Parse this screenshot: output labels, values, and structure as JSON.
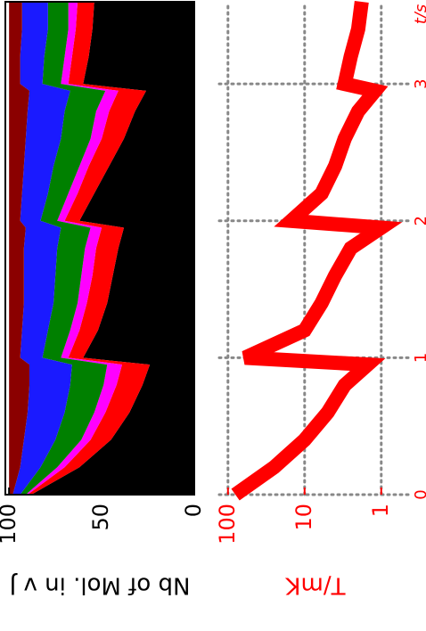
{
  "chart_data": [
    {
      "type": "area",
      "stacked": true,
      "ylabel": "Nb of Mol. in v J",
      "x": [
        0,
        0.2,
        0.4,
        0.6,
        0.8,
        0.95,
        1.0,
        1.2,
        1.4,
        1.6,
        1.8,
        1.95,
        2.0,
        2.2,
        2.4,
        2.6,
        2.8,
        2.95,
        3.0,
        3.2,
        3.4,
        3.6
      ],
      "xlim": [
        0,
        3.6
      ],
      "ylim": [
        0,
        102
      ],
      "yticks": [
        0,
        50,
        100
      ],
      "axis_color": "#000000",
      "grid": false,
      "series": [
        {
          "color": "#000000",
          "values": [
            88,
            62,
            45,
            35,
            28,
            24,
            60,
            52,
            47,
            44,
            41,
            38,
            62,
            54,
            46,
            38,
            32,
            26,
            60,
            57,
            55,
            54
          ]
        },
        {
          "color": "#ff0000",
          "values": [
            2,
            8,
            11,
            13,
            14,
            15,
            8,
            10,
            11,
            11,
            12,
            12,
            8,
            9,
            11,
            12,
            14,
            15,
            8,
            9,
            9,
            9
          ]
        },
        {
          "color": "#ff00ff",
          "values": [
            1,
            4,
            5,
            6,
            7,
            8,
            4,
            5,
            5,
            6,
            6,
            6,
            4,
            5,
            5,
            6,
            7,
            7,
            4,
            4,
            4,
            5
          ]
        },
        {
          "color": "#008000",
          "values": [
            3,
            9,
            14,
            16,
            18,
            19,
            10,
            12,
            13,
            14,
            15,
            16,
            9,
            11,
            14,
            16,
            17,
            19,
            10,
            11,
            11,
            11
          ]
        },
        {
          "color": "#1a1aff",
          "values": [
            4,
            11,
            17,
            20,
            22,
            23,
            12,
            14,
            16,
            17,
            18,
            19,
            11,
            14,
            16,
            19,
            20,
            22,
            12,
            13,
            14,
            14
          ]
        },
        {
          "color": "#8b0000",
          "values": [
            2,
            6,
            8,
            10,
            11,
            11,
            6,
            7,
            8,
            8,
            8,
            9,
            6,
            7,
            8,
            9,
            10,
            11,
            6,
            6,
            7,
            7
          ]
        }
      ]
    },
    {
      "type": "line",
      "ylabel": "T/mK",
      "xlabel": "t/s",
      "log_y": true,
      "x": [
        0,
        0.2,
        0.4,
        0.6,
        0.8,
        0.95,
        1.0,
        1.2,
        1.4,
        1.6,
        1.8,
        1.95,
        2.0,
        2.2,
        2.4,
        2.6,
        2.8,
        2.95,
        3.0,
        3.2,
        3.4,
        3.6
      ],
      "values": [
        80,
        25,
        10,
        5,
        3,
        1.5,
        60,
        10,
        6,
        4,
        2.5,
        1,
        15,
        6,
        4,
        3,
        2,
        1.2,
        3,
        2.5,
        2,
        1.8
      ],
      "color": "#ff0000",
      "axis_color": "#ff0000",
      "grid": true,
      "xlim": [
        0,
        3.6
      ],
      "xticks": [
        0,
        1,
        2,
        3
      ],
      "ylim": [
        0.4,
        130
      ],
      "yticks": [
        1,
        10,
        100
      ]
    }
  ]
}
